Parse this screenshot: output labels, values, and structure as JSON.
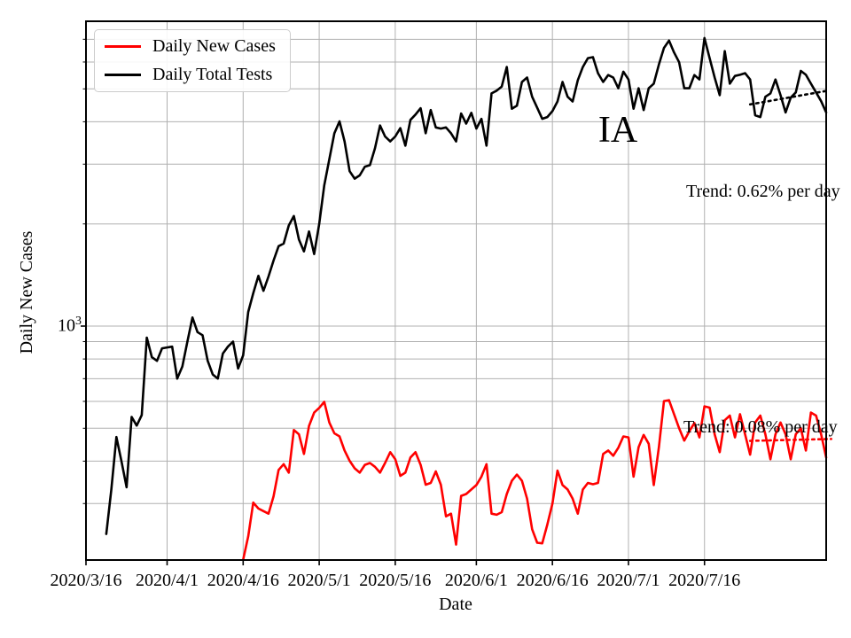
{
  "annotations": {
    "state": "IA"
  },
  "chart_data": {
    "type": "line",
    "title": "",
    "xlabel": "Date",
    "ylabel": "Daily New Cases",
    "state": "IA",
    "x_unit": "days since 2020/3/16",
    "y_scale": "log",
    "xlim_days": [
      0,
      146
    ],
    "ylim": [
      205,
      7900
    ],
    "grid": "on",
    "grid_color": "#b0b0b0",
    "legend_position": "upper left",
    "x_ticks": [
      {
        "day": 0,
        "label": "2020/3/16"
      },
      {
        "day": 16,
        "label": "2020/4/1"
      },
      {
        "day": 31,
        "label": "2020/4/16"
      },
      {
        "day": 46,
        "label": "2020/5/1"
      },
      {
        "day": 61,
        "label": "2020/5/16"
      },
      {
        "day": 77,
        "label": "2020/6/1"
      },
      {
        "day": 92,
        "label": "2020/6/16"
      },
      {
        "day": 107,
        "label": "2020/7/1"
      },
      {
        "day": 122,
        "label": "2020/7/16"
      }
    ],
    "y_major_tick": {
      "value": 1000,
      "label_base": "10",
      "label_exp": "3"
    },
    "y_gridline_values": [
      300,
      400,
      500,
      600,
      700,
      800,
      900,
      1000,
      2000,
      3000,
      4000,
      5000,
      6000,
      7000
    ],
    "series": [
      {
        "name": "Daily New Cases",
        "color": "#ff0000",
        "points": [
          [
            31,
            205
          ],
          [
            32,
            240
          ],
          [
            33,
            302
          ],
          [
            34,
            290
          ],
          [
            35,
            285
          ],
          [
            36,
            280
          ],
          [
            37,
            315
          ],
          [
            38,
            377
          ],
          [
            39,
            392
          ],
          [
            40,
            370
          ],
          [
            41,
            494
          ],
          [
            42,
            480
          ],
          [
            43,
            420
          ],
          [
            44,
            508
          ],
          [
            45,
            556
          ],
          [
            46,
            574
          ],
          [
            47,
            598
          ],
          [
            48,
            520
          ],
          [
            49,
            483
          ],
          [
            50,
            473
          ],
          [
            51,
            430
          ],
          [
            52,
            401
          ],
          [
            53,
            381
          ],
          [
            54,
            370
          ],
          [
            55,
            390
          ],
          [
            56,
            395
          ],
          [
            57,
            385
          ],
          [
            58,
            370
          ],
          [
            59,
            395
          ],
          [
            60,
            425
          ],
          [
            61,
            405
          ],
          [
            62,
            362
          ],
          [
            63,
            370
          ],
          [
            64,
            410
          ],
          [
            65,
            425
          ],
          [
            66,
            390
          ],
          [
            67,
            341
          ],
          [
            68,
            345
          ],
          [
            69,
            373
          ],
          [
            70,
            341
          ],
          [
            71,
            275
          ],
          [
            72,
            280
          ],
          [
            73,
            227
          ],
          [
            74,
            316
          ],
          [
            75,
            320
          ],
          [
            76,
            330
          ],
          [
            77,
            340
          ],
          [
            78,
            360
          ],
          [
            79,
            392
          ],
          [
            80,
            280
          ],
          [
            81,
            278
          ],
          [
            82,
            283
          ],
          [
            83,
            320
          ],
          [
            84,
            350
          ],
          [
            85,
            365
          ],
          [
            86,
            350
          ],
          [
            87,
            310
          ],
          [
            88,
            252
          ],
          [
            89,
            230
          ],
          [
            90,
            229
          ],
          [
            91,
            260
          ],
          [
            92,
            300
          ],
          [
            93,
            375
          ],
          [
            94,
            340
          ],
          [
            95,
            330
          ],
          [
            96,
            310
          ],
          [
            97,
            280
          ],
          [
            98,
            330
          ],
          [
            99,
            345
          ],
          [
            100,
            342
          ],
          [
            101,
            345
          ],
          [
            102,
            420
          ],
          [
            103,
            430
          ],
          [
            104,
            415
          ],
          [
            105,
            438
          ],
          [
            106,
            473
          ],
          [
            107,
            470
          ],
          [
            108,
            360
          ],
          [
            109,
            440
          ],
          [
            110,
            478
          ],
          [
            111,
            450
          ],
          [
            112,
            340
          ],
          [
            113,
            440
          ],
          [
            114,
            601
          ],
          [
            115,
            605
          ],
          [
            116,
            550
          ],
          [
            117,
            500
          ],
          [
            118,
            460
          ],
          [
            119,
            490
          ],
          [
            120,
            518
          ],
          [
            121,
            470
          ],
          [
            122,
            580
          ],
          [
            123,
            575
          ],
          [
            124,
            480
          ],
          [
            125,
            425
          ],
          [
            126,
            528
          ],
          [
            127,
            545
          ],
          [
            128,
            470
          ],
          [
            129,
            550
          ],
          [
            130,
            480
          ],
          [
            131,
            418
          ],
          [
            132,
            520
          ],
          [
            133,
            545
          ],
          [
            134,
            480
          ],
          [
            135,
            405
          ],
          [
            136,
            480
          ],
          [
            137,
            520
          ],
          [
            138,
            480
          ],
          [
            139,
            405
          ],
          [
            140,
            480
          ],
          [
            141,
            500
          ],
          [
            142,
            430
          ],
          [
            143,
            556
          ],
          [
            144,
            545
          ],
          [
            145,
            480
          ],
          [
            146,
            410
          ]
        ]
      },
      {
        "name": "Daily Total Tests",
        "color": "#000000",
        "points": [
          [
            4,
            244
          ],
          [
            5,
            330
          ],
          [
            6,
            471
          ],
          [
            7,
            400
          ],
          [
            8,
            335
          ],
          [
            9,
            540
          ],
          [
            10,
            509
          ],
          [
            11,
            547
          ],
          [
            12,
            925
          ],
          [
            13,
            810
          ],
          [
            14,
            790
          ],
          [
            15,
            860
          ],
          [
            16,
            865
          ],
          [
            17,
            870
          ],
          [
            18,
            700
          ],
          [
            19,
            760
          ],
          [
            20,
            900
          ],
          [
            21,
            1060
          ],
          [
            22,
            960
          ],
          [
            23,
            940
          ],
          [
            24,
            790
          ],
          [
            25,
            720
          ],
          [
            26,
            700
          ],
          [
            27,
            830
          ],
          [
            28,
            870
          ],
          [
            29,
            900
          ],
          [
            30,
            750
          ],
          [
            31,
            820
          ],
          [
            32,
            1100
          ],
          [
            33,
            1250
          ],
          [
            34,
            1406
          ],
          [
            35,
            1270
          ],
          [
            36,
            1400
          ],
          [
            37,
            1560
          ],
          [
            38,
            1720
          ],
          [
            39,
            1750
          ],
          [
            40,
            1980
          ],
          [
            41,
            2110
          ],
          [
            42,
            1800
          ],
          [
            43,
            1660
          ],
          [
            44,
            1900
          ],
          [
            45,
            1630
          ],
          [
            46,
            2000
          ],
          [
            47,
            2600
          ],
          [
            48,
            3100
          ],
          [
            49,
            3700
          ],
          [
            50,
            4010
          ],
          [
            51,
            3500
          ],
          [
            52,
            2860
          ],
          [
            53,
            2720
          ],
          [
            54,
            2780
          ],
          [
            55,
            2950
          ],
          [
            56,
            2980
          ],
          [
            57,
            3340
          ],
          [
            58,
            3900
          ],
          [
            59,
            3620
          ],
          [
            60,
            3500
          ],
          [
            61,
            3620
          ],
          [
            62,
            3830
          ],
          [
            63,
            3400
          ],
          [
            64,
            4050
          ],
          [
            65,
            4200
          ],
          [
            66,
            4385
          ],
          [
            67,
            3700
          ],
          [
            68,
            4330
          ],
          [
            69,
            3850
          ],
          [
            70,
            3820
          ],
          [
            71,
            3850
          ],
          [
            72,
            3700
          ],
          [
            73,
            3500
          ],
          [
            74,
            4230
          ],
          [
            75,
            3950
          ],
          [
            76,
            4250
          ],
          [
            77,
            3820
          ],
          [
            78,
            4080
          ],
          [
            79,
            3400
          ],
          [
            80,
            4850
          ],
          [
            81,
            4940
          ],
          [
            82,
            5080
          ],
          [
            83,
            5800
          ],
          [
            84,
            4370
          ],
          [
            85,
            4460
          ],
          [
            86,
            5240
          ],
          [
            87,
            5400
          ],
          [
            88,
            4740
          ],
          [
            89,
            4400
          ],
          [
            90,
            4080
          ],
          [
            91,
            4130
          ],
          [
            92,
            4300
          ],
          [
            93,
            4590
          ],
          [
            94,
            5240
          ],
          [
            95,
            4740
          ],
          [
            96,
            4590
          ],
          [
            97,
            5300
          ],
          [
            98,
            5800
          ],
          [
            99,
            6160
          ],
          [
            100,
            6200
          ],
          [
            101,
            5560
          ],
          [
            102,
            5240
          ],
          [
            103,
            5490
          ],
          [
            104,
            5400
          ],
          [
            105,
            5020
          ],
          [
            106,
            5620
          ],
          [
            107,
            5330
          ],
          [
            108,
            4370
          ],
          [
            109,
            5020
          ],
          [
            110,
            4330
          ],
          [
            111,
            5020
          ],
          [
            112,
            5180
          ],
          [
            113,
            5900
          ],
          [
            114,
            6600
          ],
          [
            115,
            6940
          ],
          [
            116,
            6400
          ],
          [
            117,
            5990
          ],
          [
            118,
            5020
          ],
          [
            119,
            5020
          ],
          [
            120,
            5490
          ],
          [
            121,
            5330
          ],
          [
            122,
            7060
          ],
          [
            123,
            6160
          ],
          [
            124,
            5400
          ],
          [
            125,
            4790
          ],
          [
            126,
            6460
          ],
          [
            127,
            5180
          ],
          [
            128,
            5460
          ],
          [
            129,
            5500
          ],
          [
            130,
            5560
          ],
          [
            131,
            5330
          ],
          [
            132,
            4180
          ],
          [
            133,
            4130
          ],
          [
            134,
            4740
          ],
          [
            135,
            4850
          ],
          [
            136,
            5330
          ],
          [
            137,
            4790
          ],
          [
            138,
            4260
          ],
          [
            139,
            4710
          ],
          [
            140,
            4880
          ],
          [
            141,
            5650
          ],
          [
            142,
            5500
          ],
          [
            143,
            5180
          ],
          [
            144,
            4880
          ],
          [
            145,
            4600
          ],
          [
            146,
            4260
          ]
        ]
      }
    ],
    "trends": [
      {
        "series": "Daily Total Tests",
        "label": "Trend: 0.62% per day",
        "percent_per_day": 0.62,
        "color": "#000000",
        "start_day": 131,
        "start_value": 4500,
        "end_day": 146,
        "end_value": 4930
      },
      {
        "series": "Daily New Cases",
        "label": "Trend: 0.08% per day",
        "percent_per_day": 0.08,
        "color": "#ff0000",
        "start_day": 131,
        "start_value": 459,
        "end_day": 147,
        "end_value": 465
      }
    ]
  }
}
